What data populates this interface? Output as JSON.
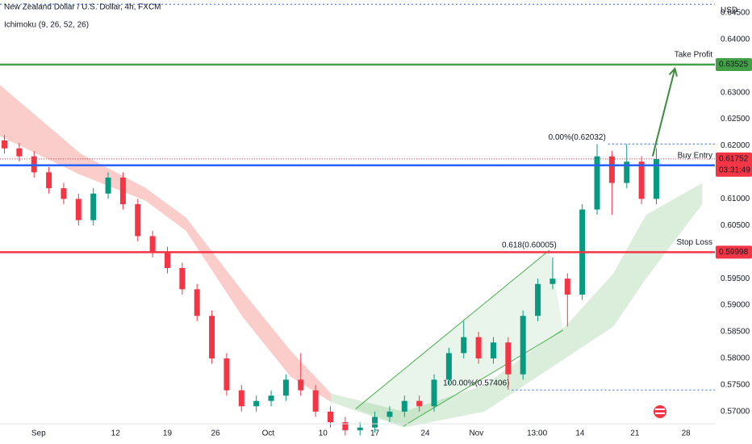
{
  "chart_data": {
    "type": "candlestick",
    "title": "New Zealand Dollar / U.S. Dollar, 4h, FXCM",
    "indicator": "Ichimoku (9, 26, 52, 26)",
    "currency": "USD",
    "up_color": "#089981",
    "down_color": "#f23645",
    "xlim": [
      -4.6,
      91.9
    ],
    "ylim": [
      0.5677,
      0.6474
    ],
    "xticks": [
      {
        "value": 0.6,
        "label": "Sep"
      },
      {
        "value": 11,
        "label": "12"
      },
      {
        "value": 18,
        "label": "19"
      },
      {
        "value": 24.5,
        "label": "26"
      },
      {
        "value": 31.6,
        "label": "Oct"
      },
      {
        "value": 39,
        "label": "10"
      },
      {
        "value": 46,
        "label": "17"
      },
      {
        "value": 52.8,
        "label": "24"
      },
      {
        "value": 59.7,
        "label": "Nov"
      },
      {
        "value": 67.9,
        "label": "13:00"
      },
      {
        "value": 73.7,
        "label": "14"
      },
      {
        "value": 81.1,
        "label": "21"
      },
      {
        "value": 88,
        "label": "28"
      }
    ],
    "yticks": [
      {
        "value": 0.645,
        "label": "0.64500"
      },
      {
        "value": 0.64,
        "label": "0.64000"
      },
      {
        "value": 0.63,
        "label": "0.63000"
      },
      {
        "value": 0.625,
        "label": "0.62500"
      },
      {
        "value": 0.62,
        "label": "0.62000"
      },
      {
        "value": 0.61,
        "label": "0.61000"
      },
      {
        "value": 0.605,
        "label": "0.60500"
      },
      {
        "value": 0.595,
        "label": "0.59500"
      },
      {
        "value": 0.59,
        "label": "0.59000"
      },
      {
        "value": 0.585,
        "label": "0.58500"
      },
      {
        "value": 0.58,
        "label": "0.58000"
      },
      {
        "value": 0.575,
        "label": "0.57500"
      },
      {
        "value": 0.57,
        "label": "0.57000"
      }
    ],
    "x": [
      -4,
      -2,
      0,
      2,
      4,
      6,
      8,
      10,
      12,
      14,
      16,
      18,
      20,
      22,
      24,
      26,
      28,
      30,
      32,
      34,
      36,
      38,
      40,
      42,
      44,
      46,
      48,
      50,
      52,
      54,
      56,
      58,
      60,
      62,
      64,
      66,
      68,
      70,
      72,
      74,
      76,
      78,
      80,
      82,
      84
    ],
    "open": [
      0.621,
      0.6195,
      0.618,
      0.615,
      0.612,
      0.61,
      0.606,
      0.611,
      0.614,
      0.609,
      0.603,
      0.6,
      0.597,
      0.593,
      0.588,
      0.58,
      0.574,
      0.571,
      0.572,
      0.573,
      0.576,
      0.574,
      0.57,
      0.568,
      0.5665,
      0.567,
      0.569,
      0.57,
      0.572,
      0.571,
      0.576,
      0.581,
      0.584,
      0.58,
      0.583,
      0.577,
      0.588,
      0.594,
      0.595,
      0.592,
      0.608,
      0.618,
      0.613,
      0.617,
      0.61
    ],
    "high": [
      0.622,
      0.6205,
      0.619,
      0.616,
      0.613,
      0.611,
      0.612,
      0.615,
      0.615,
      0.61,
      0.604,
      0.601,
      0.598,
      0.594,
      0.589,
      0.581,
      0.575,
      0.573,
      0.574,
      0.577,
      0.581,
      0.575,
      0.571,
      0.569,
      0.568,
      0.57,
      0.571,
      0.573,
      0.573,
      0.577,
      0.582,
      0.587,
      0.585,
      0.584,
      0.584,
      0.589,
      0.595,
      0.599,
      0.596,
      0.609,
      0.6203,
      0.619,
      0.6203,
      0.618,
      0.6195
    ],
    "low": [
      0.6185,
      0.617,
      0.614,
      0.611,
      0.609,
      0.605,
      0.605,
      0.61,
      0.608,
      0.602,
      0.599,
      0.596,
      0.592,
      0.587,
      0.579,
      0.573,
      0.57,
      0.57,
      0.571,
      0.572,
      0.573,
      0.569,
      0.567,
      0.5655,
      0.5655,
      0.566,
      0.568,
      0.569,
      0.57,
      0.57,
      0.575,
      0.58,
      0.579,
      0.579,
      0.5741,
      0.576,
      0.587,
      0.593,
      0.586,
      0.591,
      0.607,
      0.607,
      0.612,
      0.609,
      0.609
    ],
    "close": [
      0.6195,
      0.618,
      0.615,
      0.612,
      0.61,
      0.606,
      0.611,
      0.614,
      0.609,
      0.603,
      0.6,
      0.597,
      0.593,
      0.588,
      0.58,
      0.574,
      0.571,
      0.572,
      0.573,
      0.576,
      0.574,
      0.57,
      0.568,
      0.5665,
      0.567,
      0.569,
      0.57,
      0.572,
      0.571,
      0.576,
      0.581,
      0.584,
      0.58,
      0.583,
      0.577,
      0.588,
      0.594,
      0.595,
      0.592,
      0.608,
      0.618,
      0.613,
      0.617,
      0.61,
      0.6175
    ],
    "clouds": [
      {
        "color": "#f8bcb9",
        "x": [
          -4.6,
          6.3,
          15.0,
          20.5,
          28.1,
          34.6,
          40.1
        ],
        "upper": [
          0.6314,
          0.6185,
          0.6121,
          0.6065,
          0.5927,
          0.5815,
          0.5734
        ],
        "lower": [
          0.6218,
          0.6145,
          0.6097,
          0.604,
          0.5879,
          0.5766,
          0.5718
        ]
      },
      {
        "color": "#cfe8d0",
        "x": [
          40.1,
          49.9,
          60.8,
          71.7,
          78.2,
          82.6,
          90.2
        ],
        "upper": [
          0.5734,
          0.57,
          0.575,
          0.586,
          0.596,
          0.607,
          0.613
        ],
        "lower": [
          0.5718,
          0.567,
          0.57,
          0.58,
          0.586,
          0.595,
          0.609
        ]
      }
    ],
    "channel": {
      "color": "#4caf50",
      "upper_x": [
        43.4,
        69.6
      ],
      "upper": [
        0.5705,
        0.6004
      ],
      "lower_x": [
        49.9,
        71.4
      ],
      "lower": [
        0.5673,
        0.5853
      ]
    },
    "levels": [
      {
        "name": "Take Profit",
        "value": 0.63525,
        "color": "#43a047"
      },
      {
        "name": "Buy Entry",
        "value": 0.61632,
        "color": "#2962ff"
      },
      {
        "name": "Stop Loss",
        "value": 0.59998,
        "color": "#f23645"
      }
    ],
    "current_price": {
      "value": 0.61752,
      "countdown": "03:31:49",
      "color": "#f23645"
    },
    "fib_levels": [
      {
        "label": "0.00%(0.62032)",
        "value": 0.62032,
        "from": 77.5,
        "color": "#2962ff"
      },
      {
        "label": "0.618(0.60005)",
        "value": 0.60005,
        "from": 66.5,
        "color": "#f5a623"
      },
      {
        "label": "100.00%(0.57406)",
        "value": 0.57406,
        "from": 64.5,
        "color": "#2962ff"
      }
    ],
    "top_line": 0.6466,
    "arrow": {
      "x": [
        83.5,
        86.5
      ],
      "y": [
        0.618,
        0.6345
      ],
      "color": "#388e3c"
    }
  }
}
